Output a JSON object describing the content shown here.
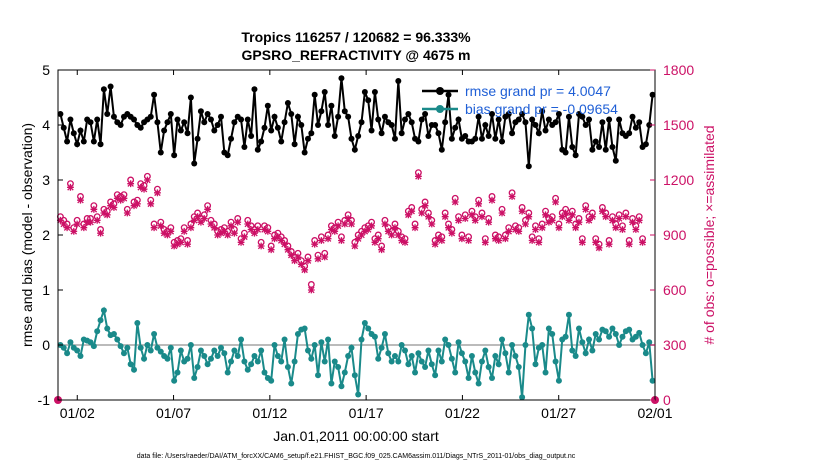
{
  "chart_data": {
    "type": "line",
    "title_line1": "Tropics 116257 / 120682 = 96.333%",
    "title_line2": "GPSRO_REFRACTIVITY @ 4675 m",
    "xlabel": "Jan.01,2011 00:00:00 start",
    "ylabel_left": "rmse and bias (model - observation)",
    "ylabel_right": "# of obs: o=possible; ×=assimilated",
    "footer": "data file: /Users/raeder/DAI/ATM_forcXX/CAM6_setup/f.e21.FHIST_BGC.f09_025.CAM6assim.011/Diags_NTrS_2011-01/obs_diag_output.nc",
    "x_range": [
      0,
      31
    ],
    "y_left_range": [
      -1,
      5
    ],
    "y_right_range": [
      0,
      1800
    ],
    "x_tick_positions": [
      1,
      6,
      11,
      16,
      21,
      26,
      31
    ],
    "x_tick_labels": [
      "01/02",
      "01/07",
      "01/12",
      "01/17",
      "01/22",
      "01/27",
      "02/01"
    ],
    "y_left_ticks": [
      -1,
      0,
      1,
      2,
      3,
      4,
      5
    ],
    "y_right_ticks": [
      0,
      300,
      600,
      900,
      1200,
      1500,
      1800
    ],
    "zero_line": 0,
    "legend": [
      {
        "label": "rmse grand pr = 4.0047",
        "color": "#000000"
      },
      {
        "label": "bias grand pr = -0.09654",
        "color": "#1a8a8a"
      }
    ],
    "colors": {
      "rmse": "#000000",
      "bias": "#1a8a8a",
      "counts": "#cc1166",
      "zero": "#bbbbbb",
      "legend_text": "#1f5fd6"
    },
    "series_rmse": [
      4.2,
      3.95,
      3.7,
      4.1,
      3.85,
      3.65,
      3.9,
      3.7,
      4.1,
      4.05,
      3.7,
      4.1,
      3.65,
      4.65,
      4.2,
      4.7,
      4.15,
      4.05,
      4.0,
      4.15,
      4.2,
      4.15,
      4.1,
      4.0,
      3.95,
      4.05,
      4.1,
      4.15,
      4.55,
      4.05,
      3.5,
      3.9,
      4.05,
      4.2,
      3.45,
      4.1,
      3.9,
      4.05,
      3.85,
      4.5,
      3.3,
      3.75,
      4.25,
      4.05,
      4.2,
      4.1,
      3.9,
      4.0,
      4.15,
      3.5,
      3.45,
      3.75,
      4.05,
      4.15,
      4.1,
      3.6,
      4.1,
      3.8,
      4.65,
      3.55,
      3.7,
      3.95,
      4.35,
      3.9,
      4.15,
      3.95,
      3.7,
      4.05,
      4.4,
      4.2,
      3.65,
      4.15,
      4.0,
      3.5,
      3.75,
      3.85,
      4.55,
      4.0,
      4.25,
      4.6,
      4.0,
      4.35,
      3.8,
      4.15,
      4.85,
      4.25,
      4.15,
      3.75,
      3.55,
      3.8,
      4.05,
      4.6,
      4.45,
      3.9,
      4.6,
      4.1,
      3.85,
      4.15,
      4.05,
      4.0,
      3.75,
      4.8,
      3.85,
      4.1,
      4.2,
      4.05,
      3.75,
      3.7,
      4.1,
      4.2,
      3.8,
      4.0,
      4.0,
      3.85,
      3.55,
      4.05,
      4.55,
      3.75,
      3.95,
      4.1,
      3.75,
      3.8,
      3.7,
      3.7,
      3.75,
      4.15,
      3.75,
      4.0,
      3.8,
      4.2,
      3.75,
      4.1,
      3.7,
      4.15,
      4.2,
      3.85,
      4.05,
      4.1,
      4.2,
      4.05,
      3.25,
      4.1,
      4.0,
      3.85,
      4.25,
      3.9,
      4.1,
      4.0,
      4.05,
      4.2,
      3.55,
      3.5,
      4.15,
      3.6,
      3.45,
      4.2,
      4.15,
      4.0,
      4.1,
      3.55,
      3.7,
      3.6,
      4.05,
      3.55,
      4.1,
      3.6,
      3.35,
      4.1,
      3.85,
      3.8,
      3.85,
      4.15,
      3.95,
      4.05,
      3.6,
      3.65,
      4.0,
      4.55
    ],
    "series_bias": [
      0.0,
      -0.05,
      -0.15,
      0.05,
      -0.05,
      -0.1,
      -0.2,
      0.1,
      0.08,
      0.05,
      -0.02,
      0.25,
      0.45,
      0.63,
      0.3,
      0.18,
      0.2,
      0.1,
      -0.02,
      -0.15,
      -0.05,
      -0.35,
      -0.45,
      0.4,
      -0.05,
      -0.25,
      0.0,
      -0.1,
      0.2,
      -0.05,
      -0.12,
      -0.2,
      -0.25,
      -0.05,
      -0.65,
      -0.5,
      -0.1,
      -0.3,
      -0.25,
      0.0,
      -0.6,
      -0.4,
      -0.1,
      -0.2,
      -0.35,
      -0.25,
      -0.1,
      -0.2,
      -0.05,
      -0.15,
      -0.5,
      -0.3,
      -0.1,
      -0.2,
      0.1,
      -0.3,
      -0.45,
      -0.35,
      -0.2,
      -0.3,
      -0.1,
      -0.5,
      -0.6,
      -0.65,
      0.0,
      -0.2,
      -0.3,
      0.1,
      -0.4,
      -0.7,
      -0.3,
      0.2,
      0.28,
      0.3,
      -0.1,
      -0.25,
      0.0,
      -0.55,
      0.05,
      -0.3,
      0.1,
      -0.7,
      -0.3,
      -0.4,
      -0.75,
      -0.5,
      -0.2,
      -0.05,
      -0.55,
      -0.9,
      0.1,
      0.4,
      0.3,
      0.2,
      0.15,
      -0.25,
      -0.05,
      0.2,
      -0.15,
      -0.3,
      -0.2,
      -0.3,
      0.0,
      -0.1,
      -0.35,
      -0.2,
      -0.5,
      -0.15,
      -0.3,
      -0.4,
      -0.1,
      -0.35,
      -0.55,
      -0.1,
      -0.3,
      0.1,
      0.0,
      -0.25,
      -0.5,
      0.05,
      -0.15,
      -0.3,
      -0.6,
      -0.2,
      -0.5,
      -0.7,
      -0.3,
      -0.1,
      -0.4,
      -0.6,
      -0.2,
      -0.35,
      0.1,
      -0.15,
      -0.5,
      0.0,
      -0.2,
      -0.4,
      -0.95,
      0.0,
      0.55,
      0.3,
      -0.35,
      -0.05,
      0.0,
      -0.5,
      0.3,
      0.2,
      -0.3,
      -0.65,
      0.1,
      0.15,
      0.55,
      -0.1,
      -0.2,
      0.3,
      0.05,
      -0.15,
      0.1,
      -0.1,
      0.2,
      0.1,
      0.28,
      0.25,
      0.15,
      0.3,
      0.2,
      0.0,
      0.15,
      0.25,
      0.28,
      0.1,
      0.15,
      0.22,
      0.0,
      -0.15,
      0.05,
      -0.65
    ],
    "series_possible": [
      1000,
      980,
      960,
      1180,
      940,
      980,
      1110,
      960,
      990,
      990,
      1060,
      1000,
      930,
      1040,
      1030,
      1080,
      1070,
      1120,
      1110,
      1120,
      1040,
      1200,
      1080,
      1090,
      1180,
      1170,
      1220,
      1090,
      960,
      1150,
      970,
      930,
      920,
      940,
      860,
      870,
      880,
      940,
      870,
      960,
      1000,
      1020,
      990,
      1010,
      1060,
      980,
      960,
      920,
      930,
      940,
      920,
      970,
      930,
      990,
      880,
      910,
      980,
      950,
      930,
      950,
      860,
      950,
      940,
      840,
      900,
      910,
      890,
      870,
      840,
      810,
      780,
      800,
      760,
      730,
      780,
      630,
      870,
      790,
      890,
      800,
      900,
      950,
      940,
      970,
      890,
      980,
      1010,
      980,
      860,
      900,
      920,
      940,
      950,
      970,
      880,
      900,
      840,
      980,
      940,
      920,
      960,
      920,
      890,
      880,
      1030,
      1050,
      960,
      1240,
      1040,
      1080,
      1020,
      980,
      870,
      900,
      890,
      1020,
      960,
      930,
      1100,
      1000,
      900,
      1010,
      890,
      1030,
      1000,
      1090,
      1020,
      880,
      990,
      1110,
      900,
      890,
      1040,
      900,
      940,
      1130,
      950,
      940,
      1050,
      980,
      1020,
      890,
      950,
      880,
      960,
      1030,
      990,
      1000,
      1100,
      960,
      1020,
      1040,
      1000,
      1030,
      960,
      990,
      880,
      1060,
      1000,
      1020,
      880,
      850,
      1050,
      1020,
      870,
      1000,
      960,
      1010,
      950,
      1020,
      870,
      990,
      950,
      1000,
      880
    ],
    "series_assimilated": [
      980,
      960,
      940,
      1160,
      920,
      960,
      1090,
      940,
      970,
      970,
      1040,
      980,
      910,
      1020,
      1010,
      1060,
      1050,
      1100,
      1090,
      1100,
      1020,
      1180,
      1060,
      1070,
      1160,
      1150,
      1200,
      1070,
      940,
      1130,
      950,
      910,
      900,
      920,
      840,
      850,
      860,
      920,
      850,
      940,
      980,
      1000,
      970,
      990,
      1040,
      960,
      940,
      900,
      910,
      920,
      900,
      950,
      910,
      970,
      860,
      890,
      960,
      930,
      910,
      930,
      840,
      930,
      920,
      820,
      880,
      890,
      870,
      850,
      820,
      790,
      760,
      780,
      740,
      710,
      760,
      600,
      850,
      770,
      870,
      780,
      880,
      930,
      920,
      950,
      870,
      960,
      990,
      960,
      840,
      880,
      900,
      920,
      930,
      950,
      860,
      880,
      820,
      960,
      920,
      900,
      940,
      900,
      870,
      860,
      1010,
      1030,
      940,
      1220,
      1020,
      1060,
      1000,
      960,
      850,
      880,
      870,
      1000,
      940,
      910,
      1080,
      980,
      880,
      990,
      870,
      1010,
      980,
      1070,
      1000,
      860,
      970,
      1090,
      880,
      870,
      1020,
      880,
      920,
      1110,
      930,
      920,
      1030,
      960,
      1000,
      870,
      930,
      860,
      940,
      1010,
      970,
      980,
      1080,
      940,
      1000,
      1020,
      980,
      1010,
      940,
      970,
      860,
      1040,
      980,
      1000,
      860,
      830,
      1030,
      1000,
      850,
      980,
      940,
      990,
      930,
      1000,
      850,
      970,
      930,
      980,
      860
    ]
  }
}
